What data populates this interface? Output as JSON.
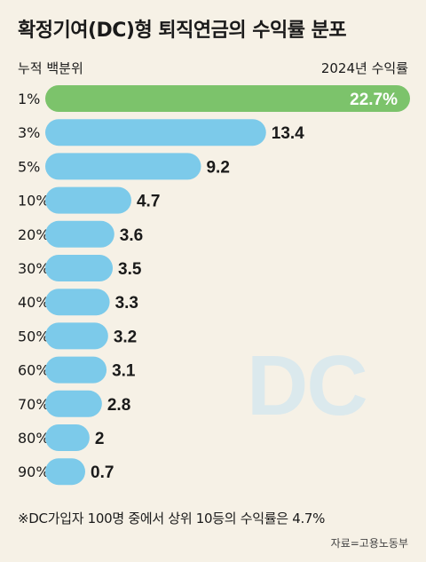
{
  "header": {
    "title": "확정기여(DC)형 퇴직연금의 수익률 분포",
    "left_label": "누적 백분위",
    "right_label": "2024년 수익률"
  },
  "watermark": "DC",
  "footer": {
    "note": "※DC가입자 100명 중에서 상위 10등의 수익률은 4.7%",
    "source": "자료=고용노동부"
  },
  "colors": {
    "background": "#f6f1e6",
    "highlight_bar": "#7cc36b",
    "bar": "#7ccaea"
  },
  "chart_data": {
    "type": "bar",
    "orientation": "horizontal",
    "categories": [
      "1%",
      "3%",
      "5%",
      "10%",
      "20%",
      "30%",
      "40%",
      "50%",
      "60%",
      "70%",
      "80%",
      "90%"
    ],
    "values": [
      22.7,
      13.4,
      9.2,
      4.7,
      3.6,
      3.5,
      3.3,
      3.2,
      3.1,
      2.8,
      2,
      0.7
    ],
    "value_labels": [
      "22.7%",
      "13.4",
      "9.2",
      "4.7",
      "3.6",
      "3.5",
      "3.3",
      "3.2",
      "3.1",
      "2.8",
      "2",
      "0.7"
    ],
    "highlight_index": 0,
    "xlim": [
      0,
      22.7
    ],
    "grid": false
  }
}
